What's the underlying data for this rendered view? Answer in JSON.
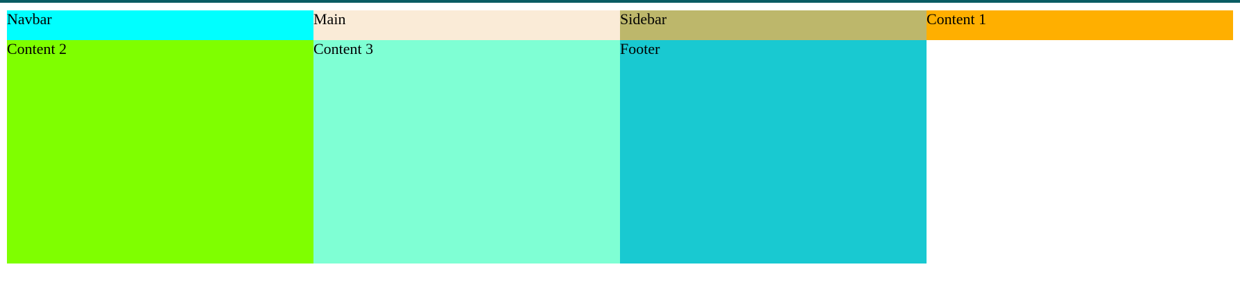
{
  "colors": {
    "top_rule": "#0a5c63",
    "navbar": "#00ffff",
    "main": "#faebd7",
    "sidebar": "#bdb76b",
    "content1": "#ffaf00",
    "content2": "#7fff00",
    "content3": "#7fffd4",
    "footer": "#19c9d1"
  },
  "cells": {
    "navbar": "Navbar",
    "main": "Main",
    "sidebar": "Sidebar",
    "content1": "Content 1",
    "content2": "Content 2",
    "content3": "Content 3",
    "footer": "Footer"
  }
}
